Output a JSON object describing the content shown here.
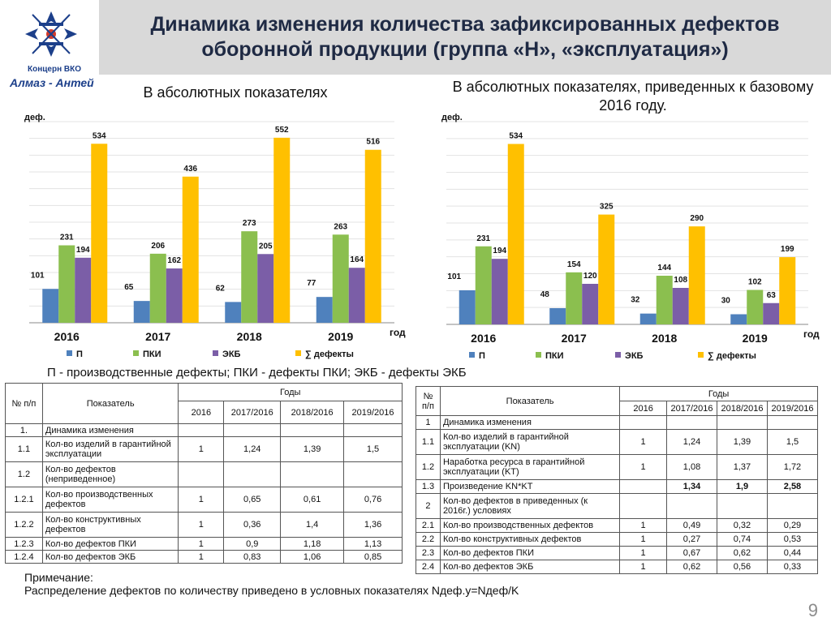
{
  "header": {
    "title_line1": "Динамика изменения количества зафиксированных дефектов",
    "title_line2": "оборонной продукции (группа «Н», «эксплуатация»)",
    "logo_line1": "Концерн ВКО",
    "logo_line2": "Алмаз - Антей"
  },
  "colors": {
    "P": "#4f81bd",
    "PKI": "#8bbf4f",
    "EKB": "#7b5ea7",
    "SUM": "#ffc000"
  },
  "chart_data": [
    {
      "type": "bar",
      "title": "В абсолютных показателях",
      "ylabel": "деф.",
      "xlabel": "год",
      "categories": [
        "2016",
        "2017",
        "2018",
        "2019"
      ],
      "ylim": [
        0,
        600
      ],
      "series": [
        {
          "name": "П",
          "values": [
            101,
            65,
            62,
            77
          ]
        },
        {
          "name": "ПКИ",
          "values": [
            231,
            206,
            273,
            263
          ]
        },
        {
          "name": "ЭКБ",
          "values": [
            194,
            162,
            205,
            164
          ]
        },
        {
          "name": "∑ дефекты",
          "values": [
            534,
            436,
            552,
            516
          ]
        }
      ]
    },
    {
      "type": "bar",
      "title": "В абсолютных показателях, приведенных к базовому 2016 году.",
      "ylabel": "деф.",
      "xlabel": "год",
      "categories": [
        "2016",
        "2017",
        "2018",
        "2019"
      ],
      "ylim": [
        0,
        600
      ],
      "series": [
        {
          "name": "П",
          "values": [
            101,
            48,
            32,
            30
          ]
        },
        {
          "name": "ПКИ",
          "values": [
            231,
            154,
            144,
            102
          ]
        },
        {
          "name": "ЭКБ",
          "values": [
            194,
            120,
            108,
            63
          ]
        },
        {
          "name": "∑ дефекты",
          "values": [
            534,
            325,
            290,
            199
          ]
        }
      ]
    }
  ],
  "legend_note": "П - производственные дефекты; ПКИ - дефекты ПКИ; ЭКБ - дефекты ЭКБ",
  "table1": {
    "h_num": "№ п/п",
    "h_ind": "Показатель",
    "h_years": "Годы",
    "years": [
      "2016",
      "2017/2016",
      "2018/2016",
      "2019/2016"
    ],
    "rows": [
      {
        "n": "1.",
        "label": "Динамика изменения",
        "v": [
          "",
          "",
          "",
          ""
        ]
      },
      {
        "n": "1.1",
        "label": "Кол-во изделий в гарантийной эксплуатации",
        "v": [
          "1",
          "1,24",
          "1,39",
          "1,5"
        ]
      },
      {
        "n": "1.2",
        "label": "Кол-во дефектов (неприведенное)",
        "v": [
          "",
          "",
          "",
          ""
        ]
      },
      {
        "n": "1.2.1",
        "label": "Кол-во производственных дефектов",
        "v": [
          "1",
          "0,65",
          "0,61",
          "0,76"
        ]
      },
      {
        "n": "1.2.2",
        "label": "Кол-во конструктивных дефектов",
        "v": [
          "1",
          "0,36",
          "1,4",
          "1,36"
        ]
      },
      {
        "n": "1.2.3",
        "label": "Кол-во дефектов ПКИ",
        "v": [
          "1",
          "0,9",
          "1,18",
          "1,13"
        ]
      },
      {
        "n": "1.2.4",
        "label": "Кол-во дефектов ЭКБ",
        "v": [
          "1",
          "0,83",
          "1,06",
          "0,85"
        ]
      }
    ]
  },
  "table2": {
    "h_num": "№ п/п",
    "h_ind": "Показатель",
    "h_years": "Годы",
    "years": [
      "2016",
      "2017/2016",
      "2018/2016",
      "2019/2016"
    ],
    "rows": [
      {
        "n": "1",
        "label": "Динамика изменения",
        "v": [
          "",
          "",
          "",
          ""
        ]
      },
      {
        "n": "1.1",
        "label": "Кол-во изделий в гарантийной эксплуатации (KN)",
        "v": [
          "1",
          "1,24",
          "1,39",
          "1,5"
        ]
      },
      {
        "n": "1.2",
        "label": "Наработка ресурса в гарантийной эксплуатации (KT)",
        "v": [
          "1",
          "1,08",
          "1,37",
          "1,72"
        ]
      },
      {
        "n": "1.3",
        "label": "Произведение KN*KT",
        "v": [
          "",
          "1,34",
          "1,9",
          "2,58"
        ]
      },
      {
        "n": "2",
        "label": "Кол-во дефектов в приведенных (к 2016г.) условиях",
        "v": [
          "",
          "",
          "",
          ""
        ]
      },
      {
        "n": "2.1",
        "label": "Кол-во производственных дефектов",
        "v": [
          "1",
          "0,49",
          "0,32",
          "0,29"
        ]
      },
      {
        "n": "2.2",
        "label": "Кол-во конструктивных дефектов",
        "v": [
          "1",
          "0,27",
          "0,74",
          "0,53"
        ]
      },
      {
        "n": "2.3",
        "label": "Кол-во дефектов ПКИ",
        "v": [
          "1",
          "0,67",
          "0,62",
          "0,44"
        ]
      },
      {
        "n": "2.4",
        "label": "Кол-во дефектов ЭКБ",
        "v": [
          "1",
          "0,62",
          "0,56",
          "0,33"
        ]
      }
    ]
  },
  "note": {
    "line1": "Примечание:",
    "line2": "Распределение дефектов по количеству приведено в условных показателях Nдеф.у=Nдеф/K"
  },
  "page_number": "9"
}
